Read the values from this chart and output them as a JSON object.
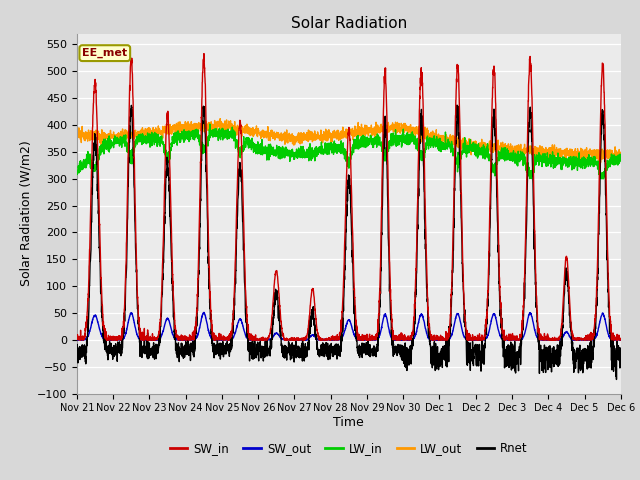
{
  "title": "Solar Radiation",
  "xlabel": "Time",
  "ylabel": "Solar Radiation (W/m2)",
  "ylim": [
    -100,
    570
  ],
  "yticks": [
    -100,
    -50,
    0,
    50,
    100,
    150,
    200,
    250,
    300,
    350,
    400,
    450,
    500,
    550
  ],
  "watermark": "EE_met",
  "series": {
    "SW_in": {
      "color": "#cc0000",
      "lw": 1.0
    },
    "SW_out": {
      "color": "#0000cc",
      "lw": 1.0
    },
    "LW_in": {
      "color": "#00cc00",
      "lw": 1.0
    },
    "LW_out": {
      "color": "#ff9900",
      "lw": 1.0
    },
    "Rnet": {
      "color": "#000000",
      "lw": 1.0
    }
  },
  "x_tick_labels": [
    "Nov 21",
    "Nov 22",
    "Nov 23",
    "Nov 24",
    "Nov 25",
    "Nov 26",
    "Nov 27",
    "Nov 28",
    "Nov 29",
    "Nov 30",
    "Dec 1",
    "Dec 2",
    "Dec 3",
    "Dec 4",
    "Dec 5",
    "Dec 6"
  ],
  "n_points": 3360,
  "figsize": [
    6.4,
    4.8
  ],
  "dpi": 100,
  "plot_bg": "#ebebeb",
  "fig_bg": "#d8d8d8"
}
